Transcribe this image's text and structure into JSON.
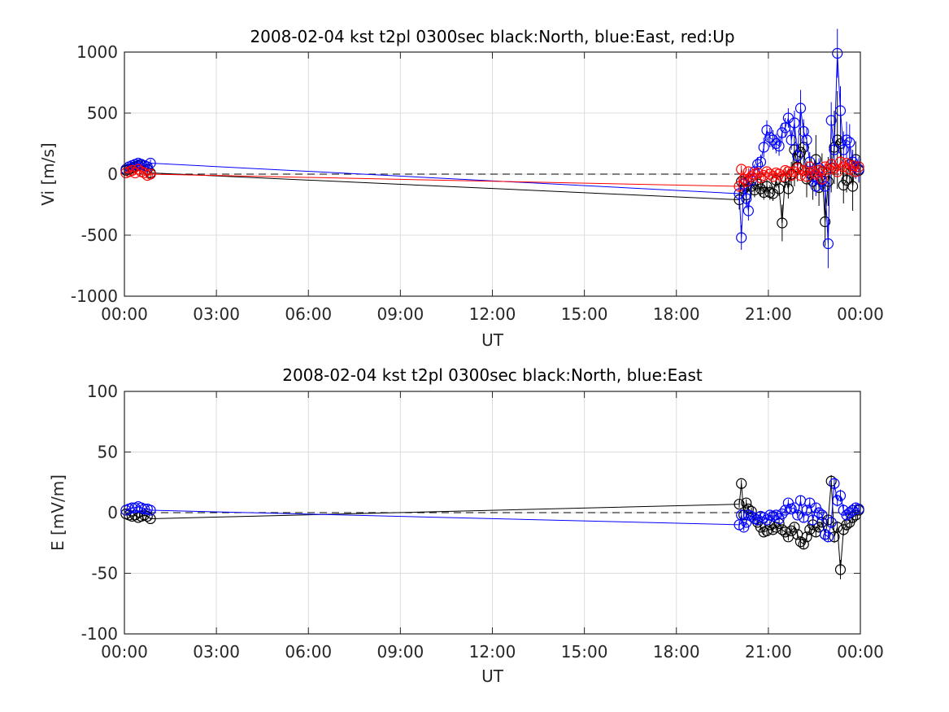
{
  "chart_data": [
    {
      "type": "scatter",
      "title": "2008-02-04 kst t2pl 0300sec black:North, blue:East, red:Up",
      "xlabel": "UT",
      "ylabel": "Vi [m/s]",
      "xlim": [
        0,
        24
      ],
      "ylim": [
        -1000,
        1000
      ],
      "xticks": [
        0,
        3,
        6,
        9,
        12,
        15,
        18,
        21,
        24
      ],
      "xtick_labels": [
        "00:00",
        "03:00",
        "06:00",
        "09:00",
        "12:00",
        "15:00",
        "18:00",
        "21:00",
        "00:00"
      ],
      "yticks": [
        -1000,
        -500,
        0,
        500,
        1000
      ],
      "ytick_labels": [
        "-1000",
        "-500",
        "0",
        "500",
        "1000"
      ],
      "grid": true,
      "reference_line": 0,
      "series": [
        {
          "name": "North",
          "color": "#000000",
          "x": [
            0.05,
            0.15,
            0.25,
            0.35,
            0.45,
            0.55,
            0.65,
            0.75,
            0.85,
            20.05,
            20.12,
            20.2,
            20.28,
            20.35,
            20.45,
            20.55,
            20.65,
            20.75,
            20.85,
            20.95,
            21.05,
            21.15,
            21.25,
            21.35,
            21.45,
            21.55,
            21.65,
            21.75,
            21.85,
            21.95,
            22.05,
            22.15,
            22.25,
            22.35,
            22.45,
            22.55,
            22.65,
            22.75,
            22.85,
            22.95,
            23.05,
            23.15,
            23.25,
            23.35,
            23.45,
            23.55,
            23.65,
            23.75,
            23.85,
            23.95
          ],
          "y": [
            30,
            40,
            50,
            60,
            70,
            80,
            70,
            40,
            10,
            -210,
            -60,
            -120,
            -170,
            -60,
            -100,
            -130,
            -80,
            -120,
            -150,
            -100,
            -150,
            -160,
            -50,
            -120,
            -400,
            -30,
            -120,
            0,
            200,
            60,
            180,
            220,
            -40,
            10,
            -60,
            120,
            -110,
            20,
            -390,
            -60,
            50,
            220,
            280,
            250,
            -90,
            -50,
            80,
            -100,
            120,
            30
          ],
          "errors": [
            40,
            40,
            40,
            40,
            40,
            40,
            40,
            40,
            40,
            80,
            60,
            60,
            60,
            60,
            60,
            60,
            60,
            60,
            60,
            60,
            60,
            60,
            60,
            60,
            150,
            80,
            80,
            100,
            300,
            120,
            200,
            200,
            150,
            100,
            150,
            200,
            150,
            150,
            200,
            200,
            200,
            300,
            400,
            250,
            150,
            100,
            150,
            200,
            150,
            100
          ]
        },
        {
          "name": "East",
          "color": "#0000ff",
          "x": [
            0.05,
            0.15,
            0.25,
            0.35,
            0.45,
            0.55,
            0.65,
            0.75,
            0.85,
            20.05,
            20.12,
            20.2,
            20.28,
            20.35,
            20.45,
            20.55,
            20.65,
            20.75,
            20.85,
            20.95,
            21.05,
            21.15,
            21.25,
            21.35,
            21.45,
            21.55,
            21.65,
            21.75,
            21.85,
            21.95,
            22.05,
            22.15,
            22.25,
            22.35,
            22.45,
            22.55,
            22.65,
            22.75,
            22.85,
            22.95,
            23.05,
            23.15,
            23.25,
            23.35,
            23.45,
            23.55,
            23.65,
            23.75,
            23.85,
            23.95
          ],
          "y": [
            40,
            60,
            70,
            80,
            90,
            80,
            70,
            60,
            90,
            -160,
            -520,
            -80,
            -200,
            -300,
            -50,
            20,
            80,
            100,
            220,
            360,
            300,
            280,
            250,
            230,
            340,
            380,
            460,
            280,
            420,
            150,
            540,
            350,
            280,
            100,
            -20,
            -100,
            50,
            -60,
            -100,
            -570,
            440,
            200,
            990,
            520,
            200,
            280,
            260,
            100,
            60,
            40
          ],
          "errors": [
            30,
            30,
            30,
            30,
            30,
            30,
            30,
            30,
            30,
            60,
            100,
            80,
            80,
            80,
            60,
            60,
            60,
            60,
            80,
            80,
            80,
            80,
            80,
            80,
            80,
            80,
            80,
            80,
            100,
            100,
            150,
            100,
            100,
            80,
            80,
            80,
            80,
            80,
            100,
            200,
            150,
            150,
            200,
            200,
            150,
            150,
            150,
            100,
            100,
            100
          ]
        },
        {
          "name": "Up",
          "color": "#ff0000",
          "x": [
            0.05,
            0.15,
            0.25,
            0.35,
            0.45,
            0.55,
            0.65,
            0.75,
            0.85,
            20.05,
            20.12,
            20.2,
            20.28,
            20.35,
            20.45,
            20.55,
            20.65,
            20.75,
            20.85,
            20.95,
            21.05,
            21.15,
            21.25,
            21.35,
            21.45,
            21.55,
            21.65,
            21.75,
            21.85,
            21.95,
            22.05,
            22.15,
            22.25,
            22.35,
            22.45,
            22.55,
            22.65,
            22.75,
            22.85,
            22.95,
            23.05,
            23.15,
            23.25,
            23.35,
            23.45,
            23.55,
            23.65,
            23.75,
            23.85,
            23.95
          ],
          "y": [
            10,
            20,
            30,
            10,
            40,
            20,
            10,
            -10,
            0,
            -100,
            40,
            -40,
            -60,
            20,
            -20,
            0,
            10,
            -30,
            -10,
            20,
            0,
            -20,
            10,
            0,
            -20,
            30,
            20,
            -10,
            20,
            50,
            -10,
            30,
            -20,
            60,
            20,
            0,
            30,
            -40,
            60,
            40,
            80,
            50,
            20,
            100,
            60,
            90,
            40,
            70,
            20,
            60
          ],
          "errors": [
            15,
            15,
            15,
            15,
            15,
            15,
            15,
            15,
            15,
            40,
            30,
            30,
            30,
            30,
            30,
            30,
            30,
            30,
            30,
            30,
            30,
            30,
            30,
            30,
            30,
            30,
            30,
            30,
            30,
            30,
            30,
            30,
            30,
            30,
            30,
            30,
            30,
            30,
            30,
            30,
            30,
            30,
            30,
            40,
            30,
            30,
            30,
            30,
            30,
            30
          ]
        }
      ]
    },
    {
      "type": "scatter",
      "title": "2008-02-04 kst t2pl 0300sec black:North, blue:East",
      "xlabel": "UT",
      "ylabel": "E [mV/m]",
      "xlim": [
        0,
        24
      ],
      "ylim": [
        -100,
        100
      ],
      "xticks": [
        0,
        3,
        6,
        9,
        12,
        15,
        18,
        21,
        24
      ],
      "xtick_labels": [
        "00:00",
        "03:00",
        "06:00",
        "09:00",
        "12:00",
        "15:00",
        "18:00",
        "21:00",
        "00:00"
      ],
      "yticks": [
        -100,
        -50,
        0,
        50,
        100
      ],
      "ytick_labels": [
        "-100",
        "-50",
        "0",
        "50",
        "100"
      ],
      "grid": true,
      "reference_line": 0,
      "series": [
        {
          "name": "North",
          "color": "#000000",
          "x": [
            0.05,
            0.15,
            0.25,
            0.35,
            0.45,
            0.55,
            0.65,
            0.75,
            0.85,
            20.05,
            20.12,
            20.2,
            20.28,
            20.35,
            20.45,
            20.55,
            20.65,
            20.75,
            20.85,
            20.95,
            21.05,
            21.15,
            21.25,
            21.35,
            21.45,
            21.55,
            21.65,
            21.75,
            21.85,
            21.95,
            22.05,
            22.15,
            22.25,
            22.35,
            22.45,
            22.55,
            22.65,
            22.75,
            22.85,
            22.95,
            23.05,
            23.15,
            23.25,
            23.35,
            23.45,
            23.55,
            23.65,
            23.75,
            23.85,
            23.95
          ],
          "y": [
            -1,
            -2,
            -3,
            -2,
            -4,
            -3,
            -2,
            -3,
            -5,
            7,
            24,
            -2,
            8,
            3,
            1,
            -5,
            -8,
            -12,
            -16,
            -15,
            -10,
            -14,
            -12,
            -9,
            -14,
            -16,
            -20,
            -15,
            -12,
            -18,
            -24,
            -26,
            -20,
            -14,
            -10,
            -16,
            -12,
            -8,
            -18,
            -6,
            26,
            -20,
            -12,
            -47,
            -14,
            -10,
            -8,
            -4,
            -2,
            2
          ],
          "errors": [
            1,
            1,
            1,
            1,
            1,
            1,
            1,
            1,
            1,
            3,
            3,
            3,
            3,
            3,
            3,
            3,
            3,
            3,
            3,
            3,
            3,
            3,
            3,
            3,
            3,
            3,
            3,
            3,
            3,
            3,
            4,
            4,
            4,
            4,
            4,
            4,
            4,
            4,
            4,
            4,
            5,
            5,
            5,
            8,
            5,
            5,
            5,
            5,
            4,
            4
          ]
        },
        {
          "name": "East",
          "color": "#0000ff",
          "x": [
            0.05,
            0.15,
            0.25,
            0.35,
            0.45,
            0.55,
            0.65,
            0.75,
            0.85,
            20.05,
            20.12,
            20.2,
            20.28,
            20.35,
            20.45,
            20.55,
            20.65,
            20.75,
            20.85,
            20.95,
            21.05,
            21.15,
            21.25,
            21.35,
            21.45,
            21.55,
            21.65,
            21.75,
            21.85,
            21.95,
            22.05,
            22.15,
            22.25,
            22.35,
            22.45,
            22.55,
            22.65,
            22.75,
            22.85,
            22.95,
            23.05,
            23.15,
            23.25,
            23.35,
            23.45,
            23.55,
            23.65,
            23.75,
            23.85,
            23.95
          ],
          "y": [
            2,
            3,
            4,
            4,
            5,
            4,
            3,
            3,
            2,
            -10,
            -2,
            -12,
            -8,
            -2,
            -3,
            -5,
            -6,
            -3,
            -4,
            -6,
            -2,
            -3,
            -2,
            -5,
            -1,
            2,
            8,
            3,
            4,
            -2,
            10,
            -4,
            2,
            8,
            -6,
            4,
            0,
            -2,
            -18,
            -20,
            -8,
            24,
            10,
            14,
            2,
            -2,
            0,
            2,
            4,
            3
          ],
          "errors": [
            1,
            1,
            1,
            1,
            1,
            1,
            1,
            1,
            1,
            3,
            3,
            3,
            3,
            3,
            3,
            3,
            3,
            3,
            3,
            3,
            3,
            3,
            3,
            3,
            3,
            3,
            3,
            3,
            3,
            3,
            4,
            4,
            4,
            4,
            4,
            4,
            4,
            4,
            4,
            4,
            5,
            5,
            5,
            5,
            5,
            5,
            5,
            5,
            4,
            4
          ]
        }
      ]
    }
  ]
}
